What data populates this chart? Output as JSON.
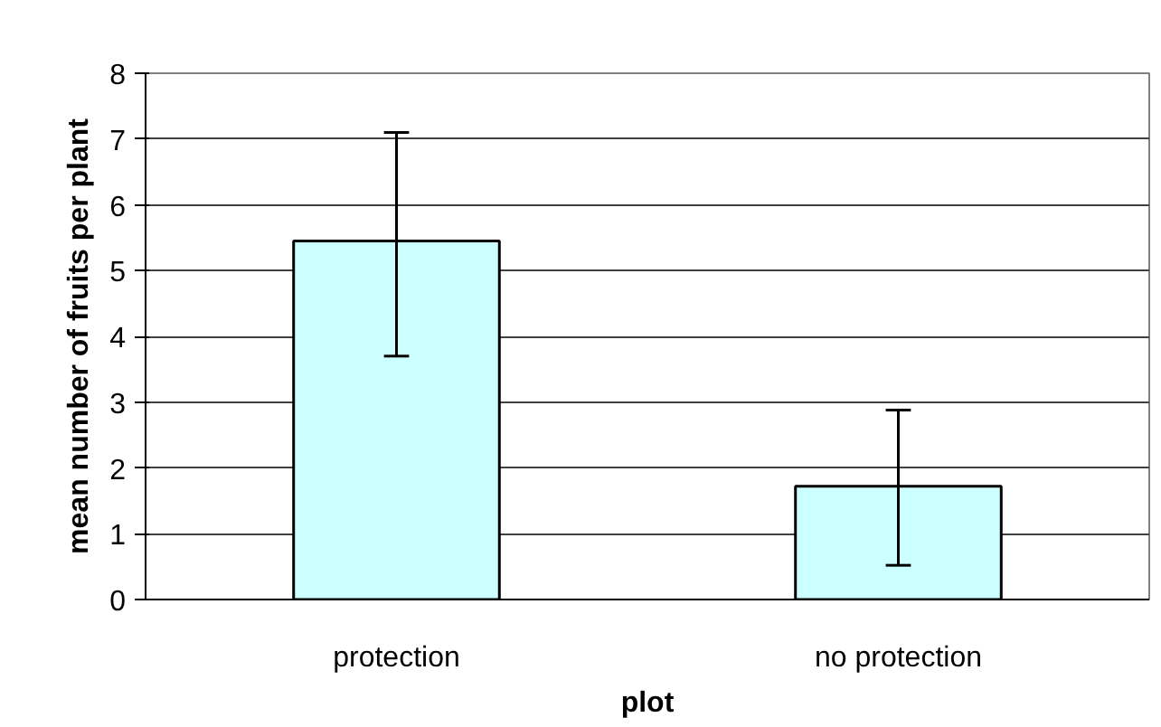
{
  "chart_data": {
    "type": "bar",
    "xlabel": "plot",
    "ylabel": "mean number of fruits per plant",
    "categories": [
      "protection",
      "no protection"
    ],
    "values": [
      5.45,
      1.72
    ],
    "errors": [
      [
        3.7,
        7.1
      ],
      [
        0.52,
        2.88
      ]
    ],
    "color": "#ccffff",
    "ylim": [
      0,
      8
    ],
    "yticks": [
      0,
      1,
      2,
      3,
      4,
      5,
      6,
      7,
      8
    ],
    "grid": "y"
  }
}
